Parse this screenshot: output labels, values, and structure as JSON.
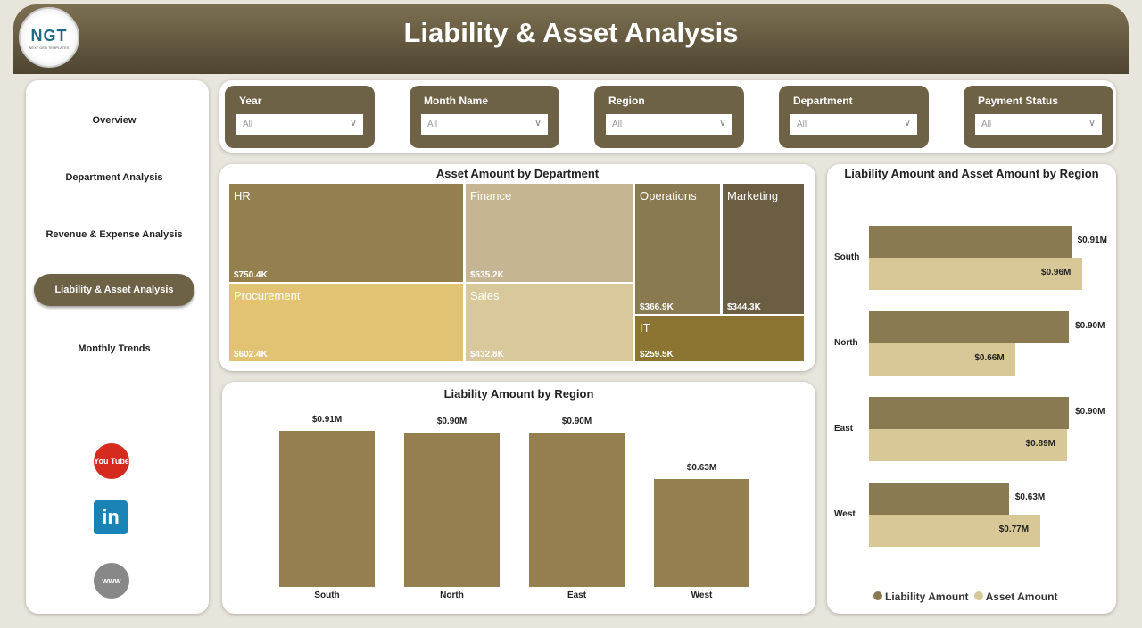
{
  "header": {
    "title": "Liability & Asset Analysis",
    "logo_text": "NGT",
    "logo_sub": "NEXT GEN TEMPLATES"
  },
  "sidebar": {
    "items": [
      {
        "label": "Overview"
      },
      {
        "label": "Department Analysis"
      },
      {
        "label": "Revenue & Expense Analysis"
      },
      {
        "label": "Liability & Asset Analysis",
        "active": true
      },
      {
        "label": "Monthly Trends"
      }
    ],
    "social": [
      {
        "icon": "youtube-icon",
        "text": "You Tube"
      },
      {
        "icon": "linkedin-icon",
        "text": "in"
      },
      {
        "icon": "globe-icon",
        "text": "www"
      }
    ]
  },
  "filters": [
    {
      "label": "Year",
      "value": "All"
    },
    {
      "label": "Month Name",
      "value": "All"
    },
    {
      "label": "Region",
      "value": "All"
    },
    {
      "label": "Department",
      "value": "All"
    },
    {
      "label": "Payment Status",
      "value": "All"
    }
  ],
  "colors": {
    "liability": "#8a7a52",
    "asset": "#d8c898",
    "header": "#6e6246"
  },
  "chart_data": [
    {
      "type": "treemap",
      "title": "Asset Amount by Department",
      "items": [
        {
          "name": "HR",
          "value": 750.4,
          "label": "$750.4K",
          "color": "#94804f"
        },
        {
          "name": "Finance",
          "value": 535.2,
          "label": "$535.2K",
          "color": "#c5b593"
        },
        {
          "name": "Operations",
          "value": 366.9,
          "label": "$366.9K",
          "color": "#8a7a52"
        },
        {
          "name": "Marketing",
          "value": 344.3,
          "label": "$344.3K",
          "color": "#6b5e43"
        },
        {
          "name": "Procurement",
          "value": 602.4,
          "label": "$602.4K",
          "color": "#e2c373"
        },
        {
          "name": "Sales",
          "value": 432.8,
          "label": "$432.8K",
          "color": "#d9c89b"
        },
        {
          "name": "IT",
          "value": 259.5,
          "label": "$259.5K",
          "color": "#8c7533"
        }
      ]
    },
    {
      "type": "bar",
      "title": "Liability Amount by Region",
      "categories": [
        "South",
        "North",
        "East",
        "West"
      ],
      "values": [
        0.91,
        0.9,
        0.9,
        0.63
      ],
      "labels": [
        "$0.91M",
        "$0.90M",
        "$0.90M",
        "$0.63M"
      ],
      "unit": "$M"
    },
    {
      "type": "bar",
      "orientation": "horizontal",
      "title": "Liability Amount and Asset Amount by Region",
      "categories": [
        "South",
        "North",
        "East",
        "West"
      ],
      "series": [
        {
          "name": "Liability Amount",
          "values": [
            0.91,
            0.9,
            0.9,
            0.63
          ],
          "labels": [
            "$0.91M",
            "$0.90M",
            "$0.90M",
            "$0.63M"
          ]
        },
        {
          "name": "Asset Amount",
          "values": [
            0.96,
            0.66,
            0.89,
            0.77
          ],
          "labels": [
            "$0.96M",
            "$0.66M",
            "$0.89M",
            "$0.77M"
          ]
        }
      ],
      "legend": "bottom"
    }
  ]
}
